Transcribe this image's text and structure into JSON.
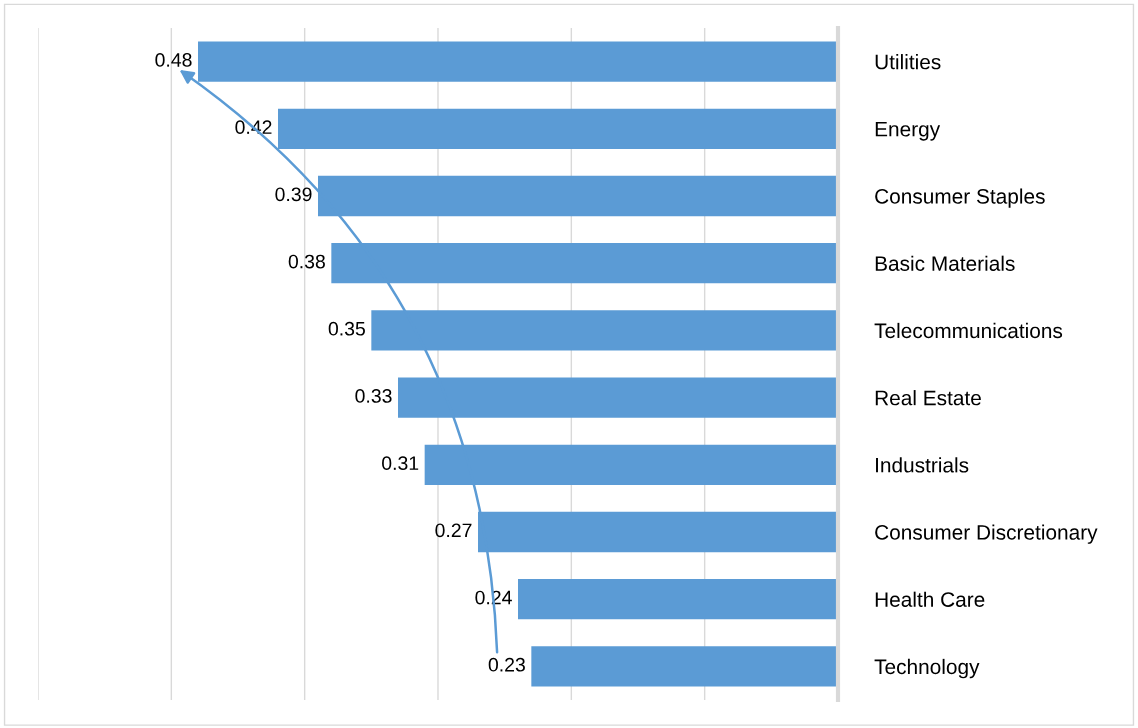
{
  "chart_data": {
    "type": "bar",
    "orientation": "horizontal",
    "categories": [
      "Utilities",
      "Energy",
      "Consumer Staples",
      "Basic Materials",
      "Telecommunications",
      "Real Estate",
      "Industrials",
      "Consumer Discretionary",
      "Health Care",
      "Technology"
    ],
    "values": [
      0.48,
      0.42,
      0.39,
      0.38,
      0.35,
      0.33,
      0.31,
      0.27,
      0.24,
      0.23
    ],
    "color": "#5b9bd5",
    "xlim": [
      0.6,
      0
    ],
    "xticks": [
      {
        "value": 0.6,
        "label": null
      },
      {
        "value": 0.5,
        "label": null
      },
      {
        "value": 0.4,
        "label": null
      },
      {
        "value": 0.3,
        "label": null
      },
      {
        "value": 0.2,
        "label": null
      },
      {
        "value": 0.1,
        "label": null
      },
      {
        "value": 0,
        "label": null
      }
    ],
    "grid": "x",
    "data_labels": true,
    "legend": false
  }
}
